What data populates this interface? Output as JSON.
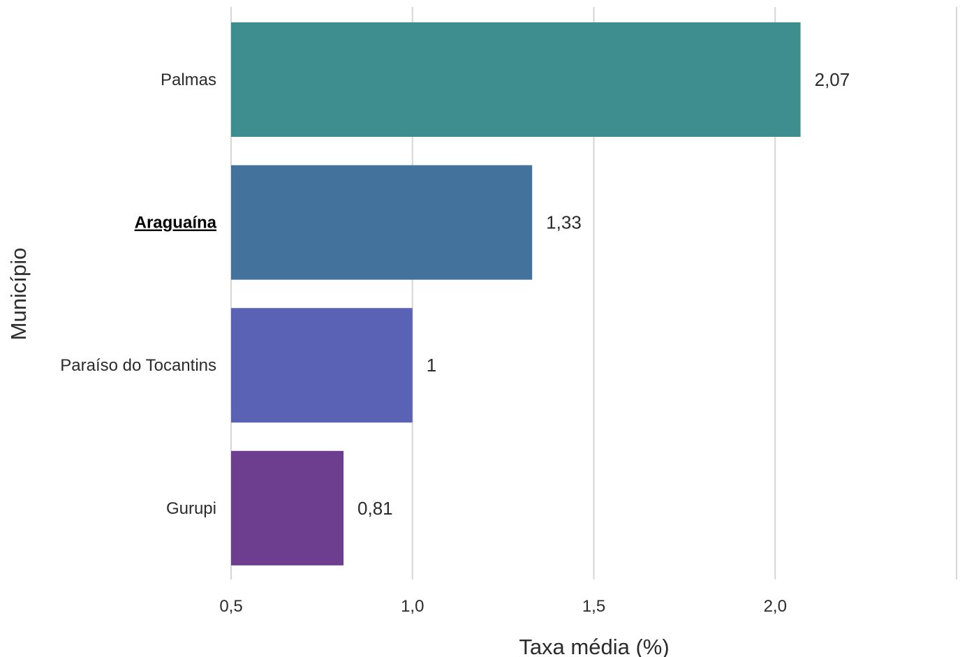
{
  "chart_data": {
    "type": "bar",
    "orientation": "horizontal",
    "categories": [
      "Palmas",
      "Araguaína",
      "Paraíso do Tocantins",
      "Gurupi"
    ],
    "highlighted_category": "Araguaína",
    "values": [
      2.07,
      1.33,
      1.0,
      0.81
    ],
    "value_labels": [
      "2,07",
      "1,33",
      "1",
      "0,81"
    ],
    "colors": [
      "#3f8e8f",
      "#43739c",
      "#5a62b5",
      "#6d3e8f"
    ],
    "xlabel": "Taxa média (%)",
    "ylabel": "Município",
    "xlim": [
      0.5,
      2.5
    ],
    "xticks": [
      0.5,
      1.0,
      1.5,
      2.0
    ],
    "xtick_labels": [
      "0,5",
      "1,0",
      "1,5",
      "2,0"
    ],
    "grid": "vertical"
  }
}
